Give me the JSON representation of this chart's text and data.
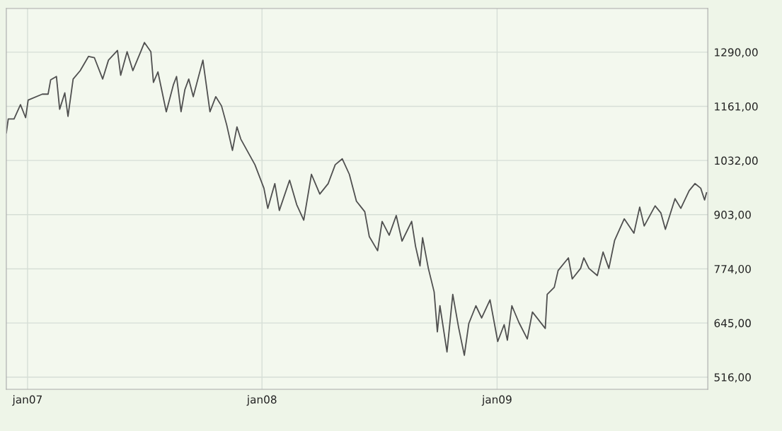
{
  "chart_data": {
    "type": "line",
    "x": [
      "2006-11-29",
      "2006-12-02",
      "2006-12-11",
      "2006-12-21",
      "2006-12-29",
      "2007-01-02",
      "2007-01-24",
      "2007-02-02",
      "2007-02-06",
      "2007-02-15",
      "2007-02-20",
      "2007-02-28",
      "2007-03-05",
      "2007-03-13",
      "2007-03-24",
      "2007-04-06",
      "2007-04-15",
      "2007-04-28",
      "2007-05-07",
      "2007-05-21",
      "2007-05-26",
      "2007-06-05",
      "2007-06-14",
      "2007-06-27",
      "2007-07-02",
      "2007-07-12",
      "2007-07-16",
      "2007-07-23",
      "2007-08-05",
      "2007-08-16",
      "2007-08-21",
      "2007-08-28",
      "2007-09-03",
      "2007-09-09",
      "2007-09-16",
      "2007-10-01",
      "2007-10-12",
      "2007-10-21",
      "2007-10-30",
      "2007-11-07",
      "2007-11-16",
      "2007-11-23",
      "2007-11-29",
      "2007-12-21",
      "2008-01-04",
      "2008-01-10",
      "2008-01-21",
      "2008-01-28",
      "2008-02-13",
      "2008-02-24",
      "2008-03-06",
      "2008-03-18",
      "2008-03-31",
      "2008-04-13",
      "2008-04-24",
      "2008-05-05",
      "2008-05-16",
      "2008-05-27",
      "2008-06-09",
      "2008-06-16",
      "2008-06-29",
      "2008-07-06",
      "2008-07-17",
      "2008-07-28",
      "2008-08-06",
      "2008-08-21",
      "2008-08-27",
      "2008-09-03",
      "2008-09-07",
      "2008-09-16",
      "2008-09-25",
      "2008-09-30",
      "2008-10-04",
      "2008-10-15",
      "2008-10-24",
      "2008-11-02",
      "2008-11-11",
      "2008-11-18",
      "2008-11-29",
      "2008-12-08",
      "2008-12-21",
      "2009-01-02",
      "2009-01-12",
      "2009-01-17",
      "2009-01-24",
      "2009-02-04",
      "2009-02-17",
      "2009-02-25",
      "2009-03-17",
      "2009-03-20",
      "2009-03-31",
      "2009-04-06",
      "2009-04-22",
      "2009-04-28",
      "2009-05-11",
      "2009-05-16",
      "2009-05-24",
      "2009-06-06",
      "2009-06-15",
      "2009-06-24",
      "2009-07-03",
      "2009-07-18",
      "2009-08-02",
      "2009-08-11",
      "2009-08-18",
      "2009-09-04",
      "2009-09-13",
      "2009-09-20",
      "2009-10-05",
      "2009-10-14",
      "2009-10-27",
      "2009-11-05",
      "2009-11-14",
      "2009-11-20",
      "2009-11-23"
    ],
    "series": [
      {
        "color": "#505050",
        "values": [
          1098,
          1131,
          1131,
          1165,
          1134,
          1176,
          1190,
          1190,
          1224,
          1232,
          1154,
          1193,
          1137,
          1226,
          1246,
          1280,
          1277,
          1226,
          1271,
          1294,
          1235,
          1291,
          1246,
          1294,
          1313,
          1291,
          1218,
          1243,
          1148,
          1212,
          1232,
          1148,
          1201,
          1226,
          1184,
          1271,
          1148,
          1184,
          1162,
          1117,
          1056,
          1112,
          1083,
          1022,
          966,
          918,
          977,
          913,
          985,
          927,
          890,
          999,
          952,
          977,
          1022,
          1036,
          999,
          935,
          910,
          851,
          817,
          887,
          854,
          901,
          840,
          887,
          828,
          781,
          848,
          775,
          719,
          624,
          686,
          576,
          713,
          635,
          568,
          644,
          686,
          657,
          700,
          601,
          641,
          604,
          686,
          646,
          607,
          671,
          632,
          713,
          730,
          770,
          800,
          750,
          775,
          800,
          775,
          758,
          814,
          775,
          842,
          893,
          859,
          921,
          876,
          924,
          907,
          868,
          941,
          918,
          960,
          977,
          966,
          938,
          955
        ]
      }
    ],
    "xlim": [
      "2006-11-29",
      "2009-11-25"
    ],
    "xticks": [
      {
        "value": "2007-01-01",
        "label": "jan07"
      },
      {
        "value": "2008-01-01",
        "label": "jan08"
      },
      {
        "value": "2009-01-01",
        "label": "jan09"
      }
    ],
    "ylim": [
      487,
      1394
    ],
    "yticks": [
      {
        "value": 516,
        "label": "516,00"
      },
      {
        "value": 645,
        "label": "645,00"
      },
      {
        "value": 774,
        "label": "774,00"
      },
      {
        "value": 903,
        "label": "903,00"
      },
      {
        "value": 1032,
        "label": "1032,00"
      },
      {
        "value": 1161,
        "label": "1161,00"
      },
      {
        "value": 1290,
        "label": "1290,00"
      }
    ],
    "grid": true,
    "marker": "none",
    "line_style": "solid"
  }
}
